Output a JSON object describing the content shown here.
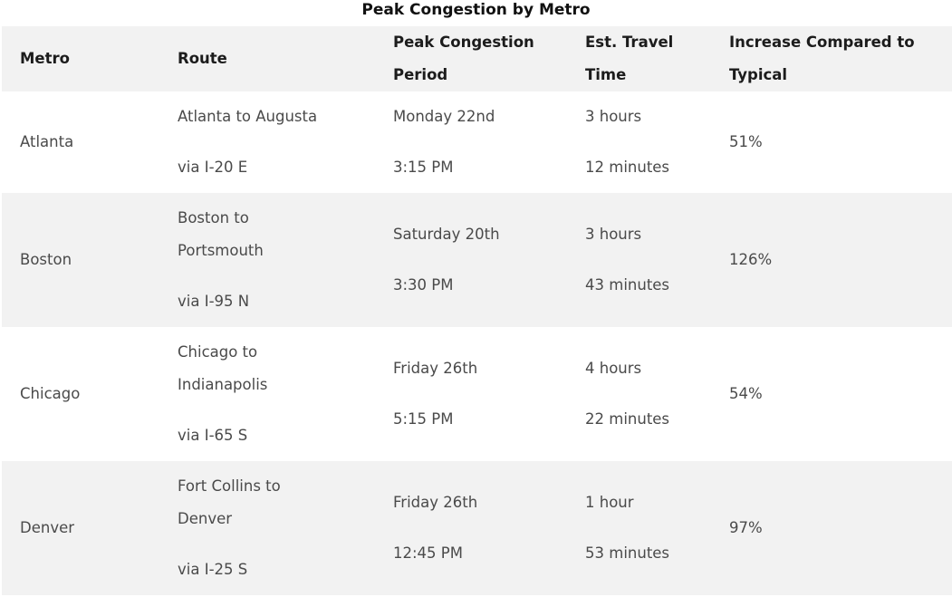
{
  "title": "Peak Congestion by Metro",
  "headers": {
    "metro": "Metro",
    "route": "Route",
    "peak_line1": "Peak Congestion",
    "peak_line2": "Period",
    "time_line1": "Est. Travel",
    "time_line2": "Time",
    "increase_line1": "Increase Compared to",
    "increase_line2": "Typical"
  },
  "rows": [
    {
      "metro": "Atlanta",
      "route_lines": [
        "Atlanta to Augusta"
      ],
      "route_via": "via I-20 E",
      "peak_day": "Monday 22nd",
      "peak_time": "3:15 PM",
      "travel_hours": "3 hours",
      "travel_minutes": "12 minutes",
      "increase": "51%"
    },
    {
      "metro": "Boston",
      "route_lines": [
        "Boston to",
        "Portsmouth"
      ],
      "route_via": "via I-95 N",
      "peak_day": "Saturday 20th",
      "peak_time": "3:30 PM",
      "travel_hours": "3 hours",
      "travel_minutes": "43 minutes",
      "increase": "126%"
    },
    {
      "metro": "Chicago",
      "route_lines": [
        "Chicago to",
        "Indianapolis"
      ],
      "route_via": "via I-65 S",
      "peak_day": "Friday 26th",
      "peak_time": "5:15 PM",
      "travel_hours": "4 hours",
      "travel_minutes": "22 minutes",
      "increase": "54%"
    },
    {
      "metro": "Denver",
      "route_lines": [
        "Fort Collins to",
        "Denver"
      ],
      "route_via": "via I-25 S",
      "peak_day": "Friday 26th",
      "peak_time": "12:45 PM",
      "travel_hours": "1 hour",
      "travel_minutes": "53 minutes",
      "increase": "97%"
    }
  ]
}
